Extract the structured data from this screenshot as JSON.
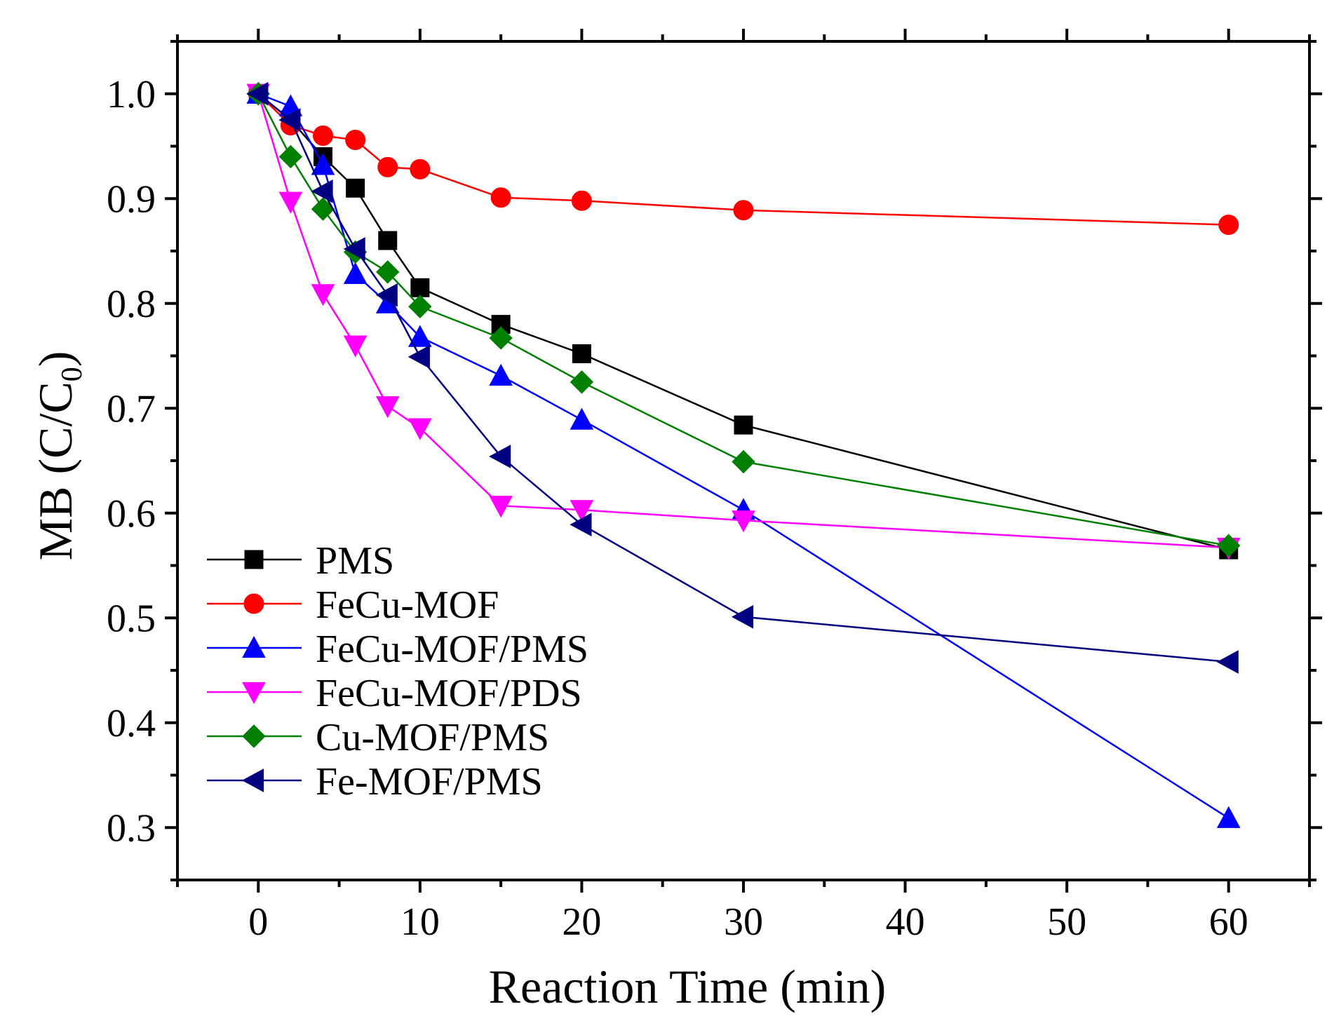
{
  "chart_data": {
    "type": "line",
    "title": "",
    "xlabel": "Reaction Time (min)",
    "ylabel_main": "MB (C/C",
    "ylabel_sub": "0",
    "ylabel_close": ")",
    "xlim": [
      -5,
      65
    ],
    "ylim": [
      0.25,
      1.05
    ],
    "xticks": [
      0,
      10,
      20,
      30,
      40,
      50,
      60
    ],
    "yticks": [
      0.3,
      0.4,
      0.5,
      0.6,
      0.7,
      0.8,
      0.9,
      1.0
    ],
    "x_tick_labels": [
      "0",
      "10",
      "20",
      "30",
      "40",
      "50",
      "60"
    ],
    "y_tick_labels": [
      "0.3",
      "0.4",
      "0.5",
      "0.6",
      "0.7",
      "0.8",
      "0.9",
      "1.0"
    ],
    "legend_position": "bottom-left",
    "series": [
      {
        "name": "PMS",
        "color": "#000000",
        "marker": "square",
        "x": [
          0,
          2,
          4,
          6,
          8,
          10,
          15,
          20,
          30,
          60
        ],
        "y": [
          1.0,
          0.975,
          0.94,
          0.91,
          0.86,
          0.815,
          0.78,
          0.752,
          0.684,
          0.565
        ]
      },
      {
        "name": "FeCu-MOF",
        "color": "#ff0000",
        "marker": "circle",
        "x": [
          0,
          2,
          4,
          6,
          8,
          10,
          15,
          20,
          30,
          60
        ],
        "y": [
          1.0,
          0.97,
          0.96,
          0.956,
          0.93,
          0.928,
          0.901,
          0.898,
          0.889,
          0.875
        ]
      },
      {
        "name": "FeCu-MOF/PMS",
        "color": "#0000ff",
        "marker": "triangle-up",
        "x": [
          0,
          2,
          4,
          6,
          8,
          10,
          15,
          20,
          30,
          60
        ],
        "y": [
          1.0,
          0.988,
          0.932,
          0.828,
          0.8,
          0.768,
          0.731,
          0.689,
          0.603,
          0.309
        ]
      },
      {
        "name": "FeCu-MOF/PDS",
        "color": "#ff00ff",
        "marker": "triangle-down",
        "x": [
          0,
          2,
          4,
          6,
          8,
          10,
          15,
          20,
          30,
          60
        ],
        "y": [
          1.0,
          0.897,
          0.809,
          0.76,
          0.702,
          0.681,
          0.607,
          0.603,
          0.593,
          0.567
        ]
      },
      {
        "name": "Cu-MOF/PMS",
        "color": "#008000",
        "marker": "diamond",
        "x": [
          0,
          2,
          4,
          6,
          8,
          10,
          15,
          20,
          30,
          60
        ],
        "y": [
          1.0,
          0.94,
          0.89,
          0.849,
          0.83,
          0.797,
          0.767,
          0.725,
          0.649,
          0.569
        ]
      },
      {
        "name": "Fe-MOF/PMS",
        "color": "#000080",
        "marker": "triangle-left",
        "x": [
          0,
          2,
          4,
          6,
          8,
          10,
          15,
          20,
          30,
          60
        ],
        "y": [
          1.0,
          0.975,
          0.907,
          0.852,
          0.808,
          0.749,
          0.654,
          0.589,
          0.501,
          0.458
        ]
      }
    ]
  }
}
